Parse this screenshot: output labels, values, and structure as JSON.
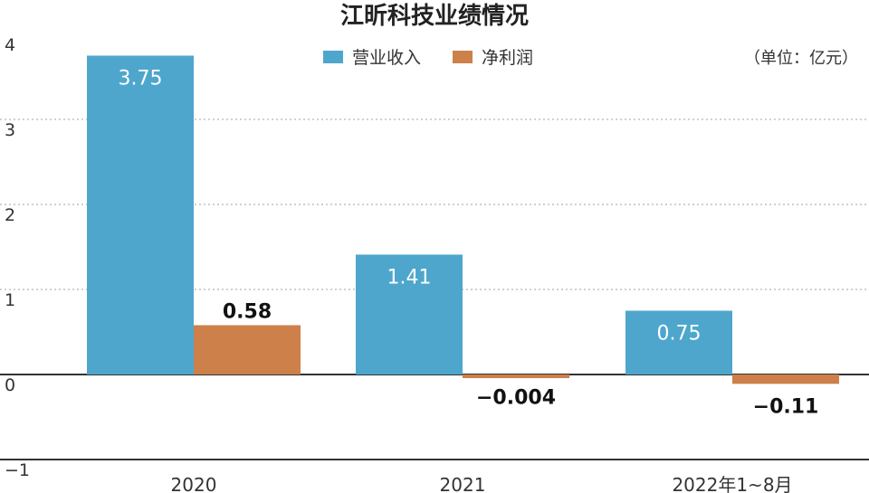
{
  "chart_data": {
    "type": "bar",
    "title": "江昕科技业绩情况",
    "unit_note": "（单位：亿元）",
    "categories": [
      "2020",
      "2021",
      "2022年1~8月"
    ],
    "series": [
      {
        "name": "营业收入",
        "color": "#4ea6cd",
        "values": [
          3.75,
          1.41,
          0.75
        ],
        "labels": [
          "3.75",
          "1.41",
          "0.75"
        ]
      },
      {
        "name": "净利润",
        "color": "#cd8049",
        "values": [
          0.58,
          -0.004,
          -0.11
        ],
        "labels": [
          "0.58",
          "−0.004",
          "−0.11"
        ]
      }
    ],
    "ylim": [
      -1,
      4
    ],
    "yticks": [
      4,
      3,
      2,
      1,
      0,
      -1
    ],
    "ytick_labels": [
      "4",
      "3",
      "2",
      "1",
      "0",
      "−1"
    ],
    "grid": true,
    "legend_position": "top-center"
  }
}
